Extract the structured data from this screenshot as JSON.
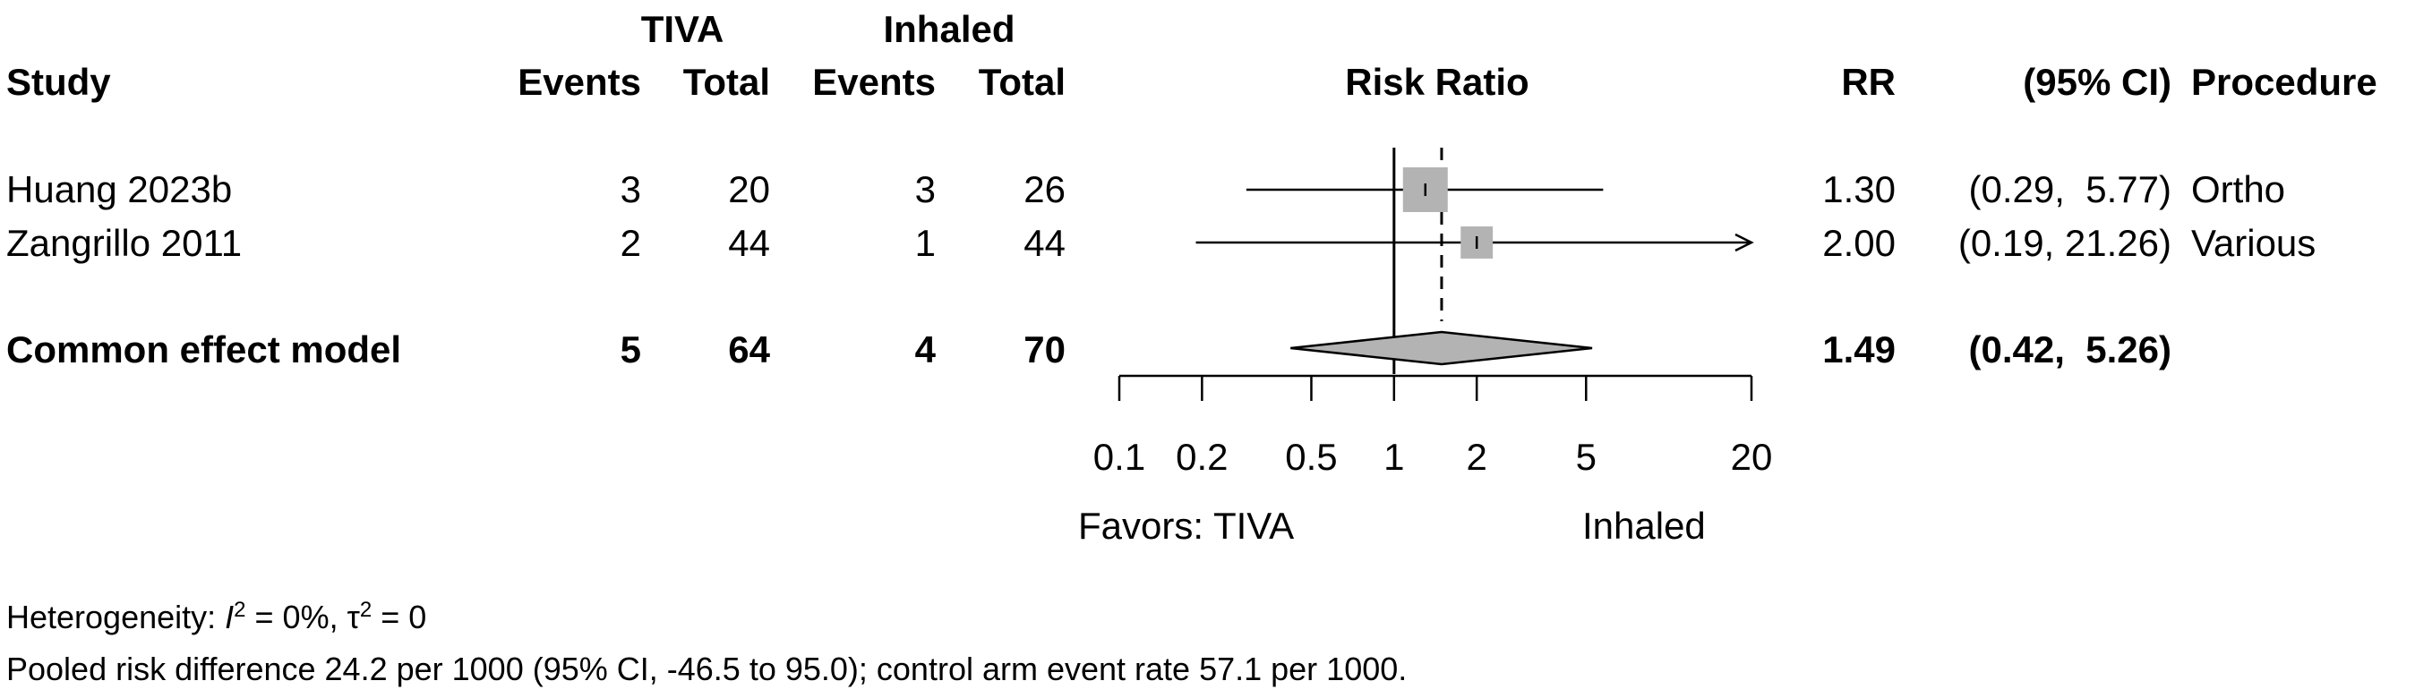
{
  "header": {
    "group1": "TIVA",
    "group2": "Inhaled",
    "study": "Study",
    "events1": "Events",
    "total1": "Total",
    "events2": "Events",
    "total2": "Total",
    "plot_title": "Risk Ratio",
    "rr": "RR",
    "ci": "(95% CI)",
    "procedure": "Procedure"
  },
  "chart_data": {
    "type": "forest",
    "measure": "Risk Ratio",
    "scale": "log",
    "xlim": [
      0.1,
      20
    ],
    "x_ticks": [
      0.1,
      0.2,
      0.5,
      1,
      2,
      5,
      20
    ],
    "x_tick_labels": [
      "0.1",
      "0.2",
      "0.5",
      "1",
      "2",
      "5",
      "20"
    ],
    "null_value": 1,
    "favors_left": "Favors: TIVA",
    "favors_right": "Inhaled",
    "studies": [
      {
        "name": "Huang 2023b",
        "events1": "3",
        "total1": "20",
        "events2": "3",
        "total2": "26",
        "rr": 1.3,
        "lower": 0.29,
        "upper": 5.77,
        "rr_text": "1.30",
        "ci_text": "(0.29,  5.77)",
        "procedure": "Ortho",
        "weight": 0.66
      },
      {
        "name": "Zangrillo 2011",
        "events1": "2",
        "total1": "44",
        "events2": "1",
        "total2": "44",
        "rr": 2.0,
        "lower": 0.19,
        "upper": 21.26,
        "rr_text": "2.00",
        "ci_text": "(0.19, 21.26)",
        "procedure": "Various",
        "weight": 0.34
      }
    ],
    "pooled": {
      "name": "Common effect model",
      "events1": "5",
      "total1": "64",
      "events2": "4",
      "total2": "70",
      "rr": 1.49,
      "lower": 0.42,
      "upper": 5.26,
      "rr_text": "1.49",
      "ci_text": "(0.42,  5.26)"
    }
  },
  "footer": {
    "heterogeneity_label": "Heterogeneity: ",
    "i2_symbol": "I",
    "i2_exp": "2",
    "i2_value": " = 0%, ",
    "tau2_symbol": "τ",
    "tau2_exp": "2",
    "tau2_value": " = 0",
    "pooled_rd": "Pooled risk difference 24.2 per 1000 (95% CI, -46.5 to 95.0); control arm event rate 57.1 per 1000."
  },
  "colors": {
    "box_fill": "#b3b3b3",
    "diamond_fill": "#b3b3b3",
    "line": "#000000"
  }
}
